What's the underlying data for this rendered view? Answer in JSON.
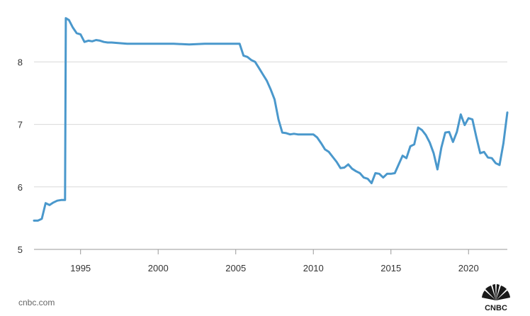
{
  "chart_data": {
    "type": "line",
    "title": "",
    "xlabel": "",
    "ylabel": "",
    "xlim": [
      1992.0,
      2022.5
    ],
    "ylim": [
      5,
      8.9
    ],
    "x_ticks": [
      1995,
      2000,
      2005,
      2010,
      2015,
      2020
    ],
    "x_tick_labels": [
      "1995",
      "2000",
      "2005",
      "2010",
      "2015",
      "2020"
    ],
    "y_ticks": [
      5,
      6,
      7,
      8
    ],
    "y_tick_labels": [
      "5",
      "6",
      "7",
      "8"
    ],
    "grid": "horizontal",
    "color": "#4a98cc",
    "series": [
      {
        "x": [
          1992.0,
          1992.25,
          1992.5,
          1992.75,
          1993.0,
          1993.25,
          1993.5,
          1993.75,
          1994.0,
          1994.05,
          1994.25,
          1994.5,
          1994.75,
          1995.0,
          1995.25,
          1995.5,
          1995.75,
          1996.0,
          1996.25,
          1996.5,
          1996.75,
          1997.0,
          1997.5,
          1998.0,
          1999.0,
          2000.0,
          2001.0,
          2002.0,
          2003.0,
          2004.0,
          2005.0,
          2005.25,
          2005.5,
          2005.75,
          2006.0,
          2006.25,
          2006.5,
          2006.75,
          2007.0,
          2007.25,
          2007.5,
          2007.75,
          2008.0,
          2008.25,
          2008.5,
          2008.75,
          2009.0,
          2009.5,
          2010.0,
          2010.25,
          2010.5,
          2010.75,
          2011.0,
          2011.25,
          2011.5,
          2011.75,
          2012.0,
          2012.25,
          2012.5,
          2012.75,
          2013.0,
          2013.25,
          2013.5,
          2013.75,
          2014.0,
          2014.25,
          2014.5,
          2014.75,
          2015.0,
          2015.25,
          2015.5,
          2015.75,
          2016.0,
          2016.25,
          2016.5,
          2016.75,
          2017.0,
          2017.25,
          2017.5,
          2017.75,
          2018.0,
          2018.25,
          2018.5,
          2018.75,
          2019.0,
          2019.25,
          2019.5,
          2019.75,
          2020.0,
          2020.25,
          2020.5,
          2020.75,
          2021.0,
          2021.25,
          2021.5,
          2021.75,
          2022.0,
          2022.25,
          2022.5
        ],
        "values": [
          5.46,
          5.46,
          5.49,
          5.74,
          5.71,
          5.75,
          5.78,
          5.79,
          5.79,
          8.7,
          8.67,
          8.55,
          8.46,
          8.44,
          8.32,
          8.34,
          8.33,
          8.35,
          8.34,
          8.32,
          8.31,
          8.31,
          8.3,
          8.29,
          8.29,
          8.29,
          8.29,
          8.28,
          8.29,
          8.29,
          8.29,
          8.29,
          8.1,
          8.08,
          8.03,
          8.0,
          7.9,
          7.8,
          7.7,
          7.56,
          7.4,
          7.08,
          6.87,
          6.86,
          6.84,
          6.85,
          6.84,
          6.84,
          6.84,
          6.79,
          6.7,
          6.6,
          6.56,
          6.48,
          6.4,
          6.3,
          6.31,
          6.36,
          6.29,
          6.25,
          6.22,
          6.15,
          6.13,
          6.06,
          6.22,
          6.21,
          6.15,
          6.21,
          6.21,
          6.22,
          6.36,
          6.5,
          6.46,
          6.65,
          6.68,
          6.95,
          6.91,
          6.83,
          6.71,
          6.54,
          6.28,
          6.63,
          6.87,
          6.88,
          6.72,
          6.88,
          7.16,
          6.99,
          7.1,
          7.08,
          6.8,
          6.54,
          6.56,
          6.47,
          6.46,
          6.38,
          6.35,
          6.7,
          7.19
        ]
      }
    ]
  },
  "footer": {
    "source_text": "cnbc.com",
    "logo_text": "CNBC"
  }
}
